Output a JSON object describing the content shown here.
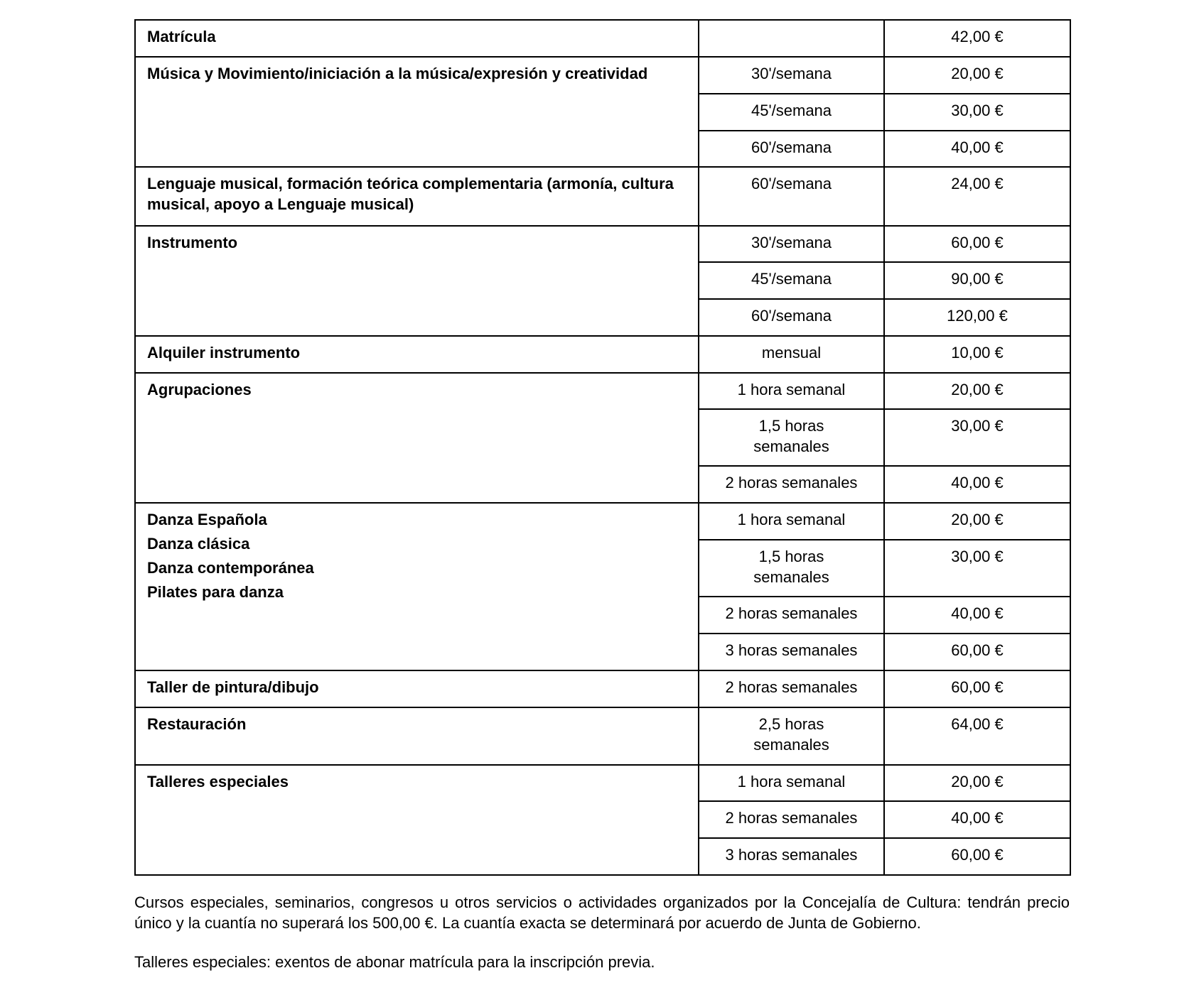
{
  "table": {
    "groups": [
      {
        "concepts": [
          "Matrícula"
        ],
        "rows": [
          {
            "duration": "",
            "price": "42,00 €",
            "h": 52
          }
        ]
      },
      {
        "concepts": [
          "Música y Movimiento/iniciación a la música/expresión y creatividad"
        ],
        "rows": [
          {
            "duration": "30'/semana",
            "price": "20,00 €",
            "h": 52
          },
          {
            "duration": "45'/semana",
            "price": "30,00 €",
            "h": 52
          },
          {
            "duration": "60'/semana",
            "price": "40,00 €",
            "h": 51
          }
        ]
      },
      {
        "concepts": [
          "Lenguaje musical, formación teórica complementaria (armonía, cultura musical, apoyo a Lenguaje musical)"
        ],
        "rows": [
          {
            "duration": "60'/semana",
            "price": "24,00 €",
            "h": 83
          }
        ]
      },
      {
        "concepts": [
          "Instrumento"
        ],
        "rows": [
          {
            "duration": "30'/semana",
            "price": "60,00 €",
            "h": 51
          },
          {
            "duration": "45'/semana",
            "price": "90,00 €",
            "h": 52
          },
          {
            "duration": "60'/semana",
            "price": "120,00 €",
            "h": 52
          }
        ]
      },
      {
        "concepts": [
          "Alquiler instrumento"
        ],
        "rows": [
          {
            "duration": "mensual",
            "price": "10,00 €",
            "h": 52
          }
        ]
      },
      {
        "concepts": [
          "Agrupaciones"
        ],
        "rows": [
          {
            "duration": "1 hora semanal",
            "price": "20,00 €",
            "h": 51
          },
          {
            "duration": "1,5 horas semanales",
            "price": "30,00 €",
            "h": 80
          },
          {
            "duration": "2 horas semanales",
            "price": "40,00 €",
            "h": 52
          }
        ]
      },
      {
        "concepts": [
          "Danza Española",
          "Danza clásica",
          "Danza contemporánea",
          "Pilates para danza"
        ],
        "rows": [
          {
            "duration": "1 hora semanal",
            "price": "20,00 €",
            "h": 52
          },
          {
            "duration": "1,5 horas semanales",
            "price": "30,00 €",
            "h": 80
          },
          {
            "duration": "2 horas semanales",
            "price": "40,00 €",
            "h": 52
          },
          {
            "duration": "3 horas semanales",
            "price": "60,00 €",
            "h": 52
          }
        ]
      },
      {
        "concepts": [
          "Taller de pintura/dibujo"
        ],
        "rows": [
          {
            "duration": "2 horas semanales",
            "price": "60,00 €",
            "h": 52
          }
        ]
      },
      {
        "concepts": [
          "Restauración"
        ],
        "rows": [
          {
            "duration": "2,5 horas semanales",
            "price": "64,00 €",
            "h": 81
          }
        ]
      },
      {
        "concepts": [
          "Talleres especiales"
        ],
        "rows": [
          {
            "duration": "1 hora semanal",
            "price": "20,00 €",
            "h": 51
          },
          {
            "duration": "2 horas semanales",
            "price": "40,00 €",
            "h": 52
          },
          {
            "duration": "3 horas semanales",
            "price": "60,00 €",
            "h": 52
          }
        ]
      }
    ]
  },
  "notes": [
    "Cursos especiales, seminarios, congresos u otros servicios o actividades organizados por la Concejalía de Cultura: tendrán precio único y la cuantía no superará los 500,00 €. La cuantía exacta se determinará por acuerdo de Junta de Gobierno.",
    "Talleres especiales: exentos de abonar matrícula para la inscripción previa."
  ]
}
